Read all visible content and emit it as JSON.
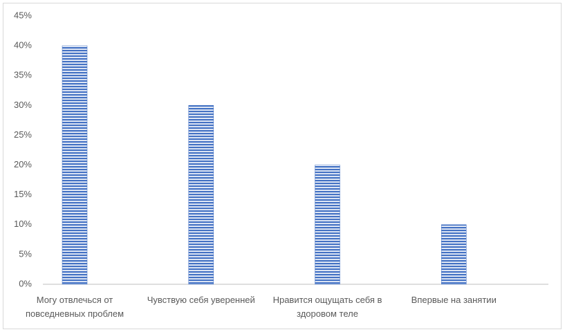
{
  "chart_data": {
    "type": "bar",
    "categories": [
      "Могу отвлечься от повседневных проблем",
      "Чувствую себя уверенней",
      "Нравится ощущать себя в здоровом теле",
      "Впервые на занятии"
    ],
    "values": [
      40,
      30,
      20,
      10
    ],
    "color": "#4472c4",
    "ylim": [
      0,
      45
    ],
    "yticks": [
      {
        "value": 0,
        "label": "0%"
      },
      {
        "value": 5,
        "label": "5%"
      },
      {
        "value": 10,
        "label": "10%"
      },
      {
        "value": 15,
        "label": "15%"
      },
      {
        "value": 20,
        "label": "20%"
      },
      {
        "value": 25,
        "label": "25%"
      },
      {
        "value": 30,
        "label": "30%"
      },
      {
        "value": 35,
        "label": "35%"
      },
      {
        "value": 40,
        "label": "40%"
      },
      {
        "value": 45,
        "label": "45%"
      }
    ],
    "grid": false
  }
}
